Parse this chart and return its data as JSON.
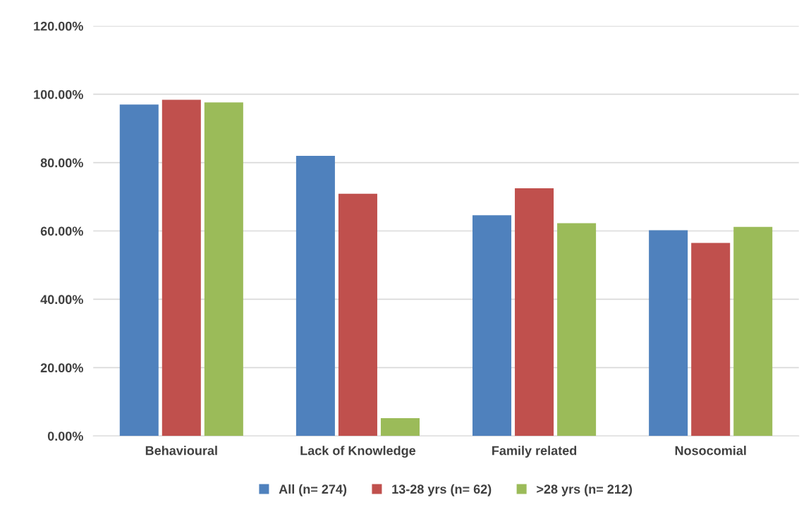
{
  "chart_data": {
    "type": "bar",
    "categories": [
      "Behavioural",
      "Lack of Knowledge",
      "Family related",
      "Nosocomial"
    ],
    "series": [
      {
        "name": "All (n= 274)",
        "color": "#4f81bd",
        "values": [
          97.0,
          82.0,
          64.6,
          60.2
        ]
      },
      {
        "name": "13-28 yrs (n= 62)",
        "color": "#c0504d",
        "values": [
          98.4,
          70.9,
          72.5,
          56.5
        ]
      },
      {
        "name": ">28 yrs (n= 212)",
        "color": "#9bbb59",
        "values": [
          97.6,
          5.2,
          62.3,
          61.2
        ]
      }
    ],
    "ylim": [
      0,
      120
    ],
    "yticks": [
      {
        "value": 0,
        "label": "0.00%"
      },
      {
        "value": 20,
        "label": "20.00%"
      },
      {
        "value": 40,
        "label": "40.00%"
      },
      {
        "value": 60,
        "label": "60.00%"
      },
      {
        "value": 80,
        "label": "80.00%"
      },
      {
        "value": 100,
        "label": "100.00%"
      },
      {
        "value": 120,
        "label": "120.00%"
      }
    ],
    "grid": "y",
    "legend": "bottom"
  }
}
